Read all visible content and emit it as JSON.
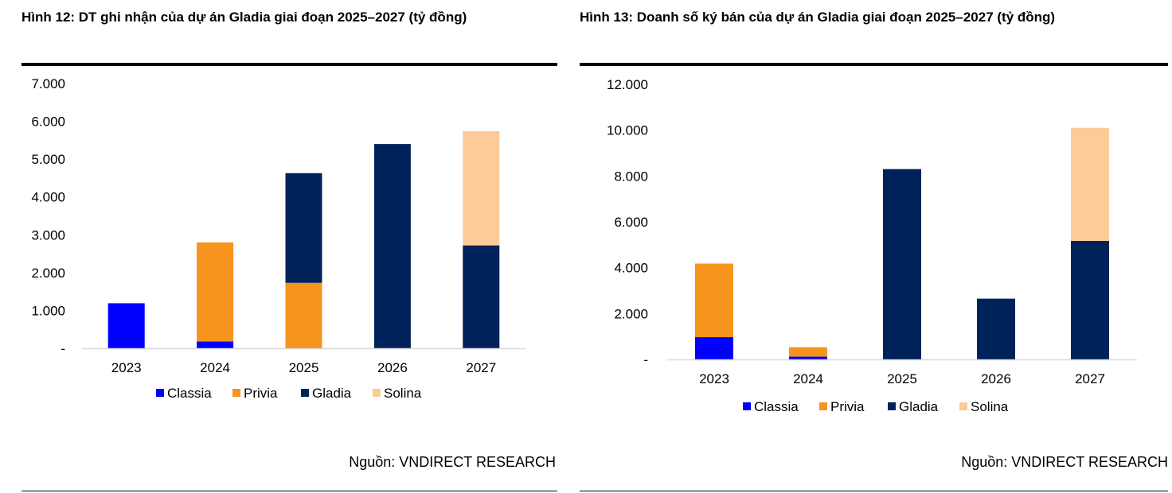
{
  "colors": {
    "Classia": "#0000ff",
    "Privia": "#f7941d",
    "Gladia": "#00225a",
    "Solina": "#fccb98"
  },
  "figures": [
    {
      "title": "Hình 12: DT ghi nhận của dự án Gladia giai đoạn 2025–2027 (tỷ đồng)",
      "source": "Nguồn: VNDIRECT RESEARCH"
    },
    {
      "title": "Hình 13: Doanh số ký bán của dự án Gladia giai đoạn 2025–2027 (tỷ đồng)",
      "source": "Nguồn: VNDIRECT RESEARCH"
    }
  ],
  "chart_data": [
    {
      "type": "bar",
      "stacked": true,
      "title": "Hình 12: DT ghi nhận của dự án Gladia giai đoạn 2025–2027 (tỷ đồng)",
      "categories": [
        "2023",
        "2024",
        "2025",
        "2026",
        "2027"
      ],
      "series": [
        {
          "name": "Classia",
          "values": [
            1190,
            180,
            0,
            0,
            0
          ]
        },
        {
          "name": "Privia",
          "values": [
            0,
            2620,
            1730,
            0,
            0
          ]
        },
        {
          "name": "Gladia",
          "values": [
            0,
            0,
            2900,
            5400,
            2720
          ]
        },
        {
          "name": "Solina",
          "values": [
            0,
            0,
            0,
            0,
            3020
          ]
        }
      ],
      "ylim": [
        0,
        7000
      ],
      "yticks": [
        0,
        1000,
        2000,
        3000,
        4000,
        5000,
        6000,
        7000
      ],
      "ytick_labels": [
        "-",
        "1.000",
        "2.000",
        "3.000",
        "4.000",
        "5.000",
        "6.000",
        "7.000"
      ],
      "legend": [
        "Classia",
        "Privia",
        "Gladia",
        "Solina"
      ],
      "legend_position": "bottom",
      "grid": false
    },
    {
      "type": "bar",
      "stacked": true,
      "title": "Hình 13: Doanh số ký bán của dự án Gladia giai đoạn 2025–2027 (tỷ đồng)",
      "categories": [
        "2023",
        "2024",
        "2025",
        "2026",
        "2027"
      ],
      "series": [
        {
          "name": "Classia",
          "values": [
            970,
            120,
            0,
            0,
            0
          ]
        },
        {
          "name": "Privia",
          "values": [
            3210,
            410,
            0,
            0,
            0
          ]
        },
        {
          "name": "Gladia",
          "values": [
            0,
            0,
            8300,
            2650,
            5170
          ]
        },
        {
          "name": "Solina",
          "values": [
            0,
            0,
            0,
            0,
            4930
          ]
        }
      ],
      "ylim": [
        0,
        12000
      ],
      "yticks": [
        0,
        2000,
        4000,
        6000,
        8000,
        10000,
        12000
      ],
      "ytick_labels": [
        "-",
        "2.000",
        "4.000",
        "6.000",
        "8.000",
        "10.000",
        "12.000"
      ],
      "legend": [
        "Classia",
        "Privia",
        "Gladia",
        "Solina"
      ],
      "legend_position": "bottom",
      "grid": false
    }
  ]
}
